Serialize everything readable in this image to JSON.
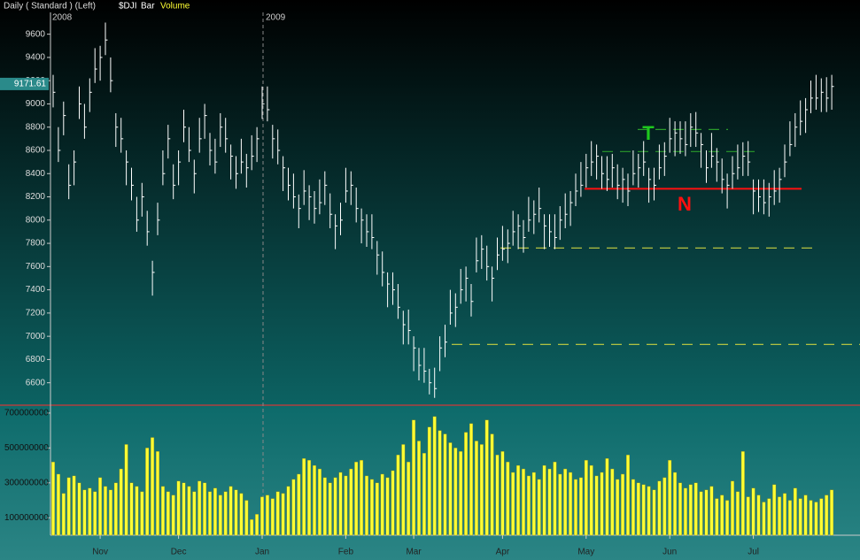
{
  "header": {
    "mode": "Daily ( Standard ) (Left)",
    "symbol": "$DJI",
    "style": "Bar",
    "study": "Volume"
  },
  "years": [
    "2008",
    "2009"
  ],
  "chart_data": {
    "type": "ohlc",
    "color": "#ffffff",
    "volume_color": "#ffff33",
    "categories": [
      null,
      null,
      null,
      null,
      null,
      null,
      null,
      null,
      null,
      "Nov",
      null,
      null,
      null,
      null,
      null,
      null,
      null,
      null,
      null,
      null,
      null,
      null,
      null,
      null,
      "Dec",
      null,
      null,
      null,
      null,
      null,
      null,
      null,
      null,
      null,
      null,
      null,
      null,
      null,
      null,
      null,
      "Jan",
      null,
      null,
      null,
      null,
      null,
      null,
      null,
      null,
      null,
      null,
      null,
      null,
      null,
      null,
      null,
      "Feb",
      null,
      null,
      null,
      null,
      null,
      null,
      null,
      null,
      null,
      null,
      null,
      null,
      "Mar",
      null,
      null,
      null,
      null,
      null,
      null,
      null,
      null,
      null,
      null,
      null,
      null,
      null,
      null,
      null,
      null,
      "Apr",
      null,
      null,
      null,
      null,
      null,
      null,
      null,
      null,
      null,
      null,
      null,
      null,
      null,
      null,
      null,
      "May",
      null,
      null,
      null,
      null,
      null,
      null,
      null,
      null,
      null,
      null,
      null,
      null,
      null,
      null,
      null,
      "Jun",
      null,
      null,
      null,
      null,
      null,
      null,
      null,
      null,
      null,
      null,
      null,
      null,
      null,
      null,
      null,
      "Jul",
      null,
      null,
      null,
      null,
      null,
      null,
      null,
      null,
      null,
      null,
      null,
      null,
      null,
      null,
      null
    ],
    "high": [
      9250,
      8800,
      9020,
      8480,
      8600,
      9150,
      9000,
      9220,
      9480,
      9500,
      9700,
      9400,
      8920,
      8880,
      8600,
      8450,
      8200,
      8320,
      8080,
      7650,
      8150,
      8600,
      8820,
      8480,
      8600,
      8950,
      8800,
      8520,
      8880,
      9000,
      8750,
      8700,
      8920,
      8880,
      8650,
      8550,
      8700,
      8570,
      8730,
      8800,
      9150,
      9150,
      8820,
      8780,
      8550,
      8450,
      8400,
      8220,
      8430,
      8300,
      8250,
      8350,
      8420,
      8230,
      8050,
      8150,
      8450,
      8420,
      8280,
      8100,
      8050,
      8050,
      7820,
      7730,
      7550,
      7550,
      7450,
      7220,
      7230,
      7000,
      6900,
      6900,
      6720,
      6730,
      7000,
      7100,
      7400,
      7370,
      7580,
      7600,
      7450,
      7850,
      7870,
      7780,
      7600,
      7850,
      7950,
      7920,
      8080,
      8050,
      8000,
      8200,
      8170,
      8280,
      8050,
      8050,
      8050,
      8120,
      8230,
      8250,
      8400,
      8500,
      8570,
      8680,
      8650,
      8550,
      8550,
      8570,
      8480,
      8450,
      8400,
      8600,
      8570,
      8680,
      8450,
      8450,
      8650,
      8670,
      8880,
      8850,
      8850,
      8850,
      8920,
      8930,
      8750,
      8600,
      8750,
      8620,
      8530,
      8400,
      8550,
      8650,
      8670,
      8680,
      8350,
      8350,
      8350,
      8320,
      8430,
      8450,
      8650,
      8850,
      8920,
      9030,
      9050,
      9200,
      9250,
      9220,
      9230,
      9250
    ],
    "low": [
      8970,
      8500,
      8730,
      8180,
      8300,
      8870,
      8700,
      8930,
      9180,
      9200,
      9420,
      9100,
      8630,
      8580,
      8300,
      8170,
      7900,
      8030,
      7780,
      7350,
      7870,
      8300,
      8530,
      8180,
      8300,
      8670,
      8500,
      8230,
      8580,
      8700,
      8470,
      8400,
      8630,
      8580,
      8350,
      8270,
      8400,
      8280,
      8430,
      8500,
      8870,
      8850,
      8530,
      8480,
      8250,
      8170,
      8100,
      7930,
      8130,
      8000,
      7970,
      8050,
      8130,
      7930,
      7750,
      7870,
      8150,
      8130,
      7980,
      7800,
      7770,
      7750,
      7530,
      7430,
      7250,
      7270,
      7150,
      6930,
      6930,
      6700,
      6620,
      6600,
      6500,
      6470,
      6700,
      6820,
      7100,
      7080,
      7280,
      7300,
      7170,
      7550,
      7580,
      7480,
      7300,
      7570,
      7650,
      7630,
      7780,
      7750,
      7720,
      7900,
      7880,
      7980,
      7750,
      7770,
      7750,
      7830,
      7930,
      7950,
      8120,
      8200,
      8280,
      8380,
      8350,
      8270,
      8250,
      8280,
      8180,
      8150,
      8120,
      8300,
      8280,
      8380,
      8150,
      8170,
      8350,
      8380,
      8580,
      8550,
      8570,
      8550,
      8630,
      8630,
      8450,
      8320,
      8450,
      8330,
      8230,
      8100,
      8270,
      8350,
      8380,
      8380,
      8050,
      8070,
      8050,
      8030,
      8130,
      8150,
      8370,
      8550,
      8630,
      8730,
      8750,
      8920,
      8950,
      8930,
      8930,
      8950
    ],
    "close": [
      9100,
      8600,
      8900,
      8300,
      8500,
      9000,
      8800,
      9100,
      9300,
      9400,
      9550,
      9200,
      8800,
      8700,
      8500,
      8300,
      8000,
      8200,
      7900,
      7550,
      8000,
      8400,
      8700,
      8300,
      8500,
      8800,
      8600,
      8400,
      8700,
      8900,
      8600,
      8500,
      8800,
      8700,
      8550,
      8400,
      8500,
      8450,
      8550,
      8700,
      9000,
      8950,
      8700,
      8600,
      8450,
      8300,
      8200,
      8100,
      8250,
      8200,
      8100,
      8150,
      8300,
      8050,
      7950,
      8000,
      8250,
      8300,
      8100,
      8000,
      7900,
      7850,
      7700,
      7550,
      7450,
      7400,
      7250,
      7100,
      7050,
      6900,
      6750,
      6700,
      6600,
      6550,
      6900,
      6950,
      7200,
      7250,
      7400,
      7500,
      7300,
      7650,
      7750,
      7600,
      7500,
      7700,
      7750,
      7800,
      7900,
      7950,
      7850,
      8000,
      8050,
      8100,
      7950,
      7900,
      7850,
      8000,
      8050,
      8150,
      8250,
      8300,
      8450,
      8500,
      8550,
      8400,
      8350,
      8450,
      8300,
      8350,
      8250,
      8400,
      8450,
      8500,
      8350,
      8300,
      8450,
      8550,
      8700,
      8750,
      8700,
      8650,
      8800,
      8750,
      8650,
      8450,
      8550,
      8500,
      8350,
      8300,
      8400,
      8450,
      8550,
      8500,
      8250,
      8200,
      8150,
      8200,
      8250,
      8350,
      8500,
      8650,
      8800,
      8850,
      8950,
      9050,
      9050,
      9100,
      9050,
      9150
    ],
    "volume": [
      420000000,
      350000000,
      240000000,
      330000000,
      340000000,
      300000000,
      260000000,
      270000000,
      250000000,
      330000000,
      280000000,
      260000000,
      300000000,
      380000000,
      520000000,
      300000000,
      280000000,
      250000000,
      500000000,
      560000000,
      480000000,
      280000000,
      250000000,
      230000000,
      310000000,
      300000000,
      280000000,
      250000000,
      310000000,
      300000000,
      250000000,
      270000000,
      230000000,
      250000000,
      280000000,
      260000000,
      240000000,
      200000000,
      90000000,
      120000000,
      220000000,
      230000000,
      210000000,
      250000000,
      240000000,
      280000000,
      320000000,
      350000000,
      440000000,
      430000000,
      400000000,
      380000000,
      330000000,
      300000000,
      330000000,
      360000000,
      340000000,
      380000000,
      420000000,
      430000000,
      340000000,
      320000000,
      300000000,
      350000000,
      330000000,
      370000000,
      460000000,
      520000000,
      420000000,
      660000000,
      540000000,
      470000000,
      620000000,
      680000000,
      600000000,
      580000000,
      530000000,
      500000000,
      480000000,
      590000000,
      640000000,
      540000000,
      520000000,
      660000000,
      580000000,
      460000000,
      480000000,
      420000000,
      360000000,
      400000000,
      380000000,
      340000000,
      360000000,
      320000000,
      400000000,
      380000000,
      420000000,
      350000000,
      380000000,
      360000000,
      320000000,
      330000000,
      430000000,
      400000000,
      340000000,
      360000000,
      440000000,
      380000000,
      320000000,
      350000000,
      460000000,
      320000000,
      300000000,
      290000000,
      280000000,
      260000000,
      310000000,
      330000000,
      430000000,
      360000000,
      300000000,
      270000000,
      290000000,
      300000000,
      250000000,
      260000000,
      280000000,
      210000000,
      230000000,
      200000000,
      310000000,
      250000000,
      480000000,
      220000000,
      270000000,
      230000000,
      190000000,
      210000000,
      290000000,
      220000000,
      240000000,
      200000000,
      270000000,
      210000000,
      230000000,
      200000000,
      190000000,
      210000000,
      230000000,
      260000000
    ],
    "ylim": [
      6430,
      9780
    ],
    "yticks": [
      6600,
      6800,
      7000,
      7200,
      7400,
      7600,
      7800,
      8000,
      8200,
      8400,
      8600,
      8800,
      9000,
      9200,
      9400,
      9600
    ],
    "volume_ylim": [
      0,
      735000000
    ],
    "volume_yticks": [
      100000000,
      300000000,
      500000000,
      700000000
    ],
    "last_price": 9171.61,
    "levels": [
      {
        "value": 8270,
        "color": "#ff1010",
        "style": "solid"
      },
      {
        "value": 8780,
        "color": "#2a9a2a",
        "style": "dashed"
      },
      {
        "value": 8590,
        "color": "#2a9a2a",
        "style": "dashed"
      },
      {
        "value": 7760,
        "color": "#c8d040",
        "style": "dashed"
      },
      {
        "value": 6930,
        "color": "#c8d040",
        "style": "dashed"
      }
    ],
    "annotations": [
      {
        "text": "T",
        "color": "#1ec81e"
      },
      {
        "text": "N",
        "color": "#ff1010"
      }
    ]
  }
}
